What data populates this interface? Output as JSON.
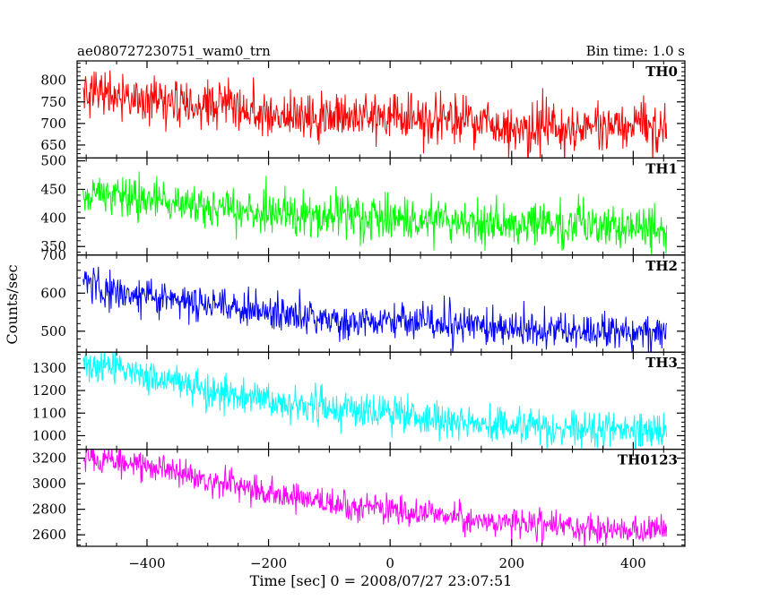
{
  "chart_data": {
    "type": "line",
    "title": "ae080727230751_wam0_trn",
    "bin_time_label": "Bin time: 1.0 s",
    "xlabel": "Time [sec] 0 = 2008/07/27 23:07:51",
    "ylabel": "Counts/sec",
    "xlim": [
      -515,
      485
    ],
    "x_start": -505,
    "x_end": 455,
    "x_step": 1,
    "x_ticks": [
      -400,
      -200,
      0,
      200,
      400
    ],
    "x_tick_labels": [
      "−400",
      "−200",
      "0",
      "200",
      "400"
    ],
    "grid": false,
    "panels": [
      {
        "name": "TH0",
        "color": "#ff0000",
        "ylim": [
          620,
          845
        ],
        "y_ticks": [
          650,
          700,
          750,
          800
        ],
        "y_tick_labels": [
          "650",
          "700",
          "750",
          "800"
        ],
        "trend": [
          [
            -505,
            770
          ],
          [
            -400,
            760
          ],
          [
            -300,
            740
          ],
          [
            -200,
            725
          ],
          [
            -100,
            710
          ],
          [
            0,
            715
          ],
          [
            100,
            705
          ],
          [
            200,
            690
          ],
          [
            300,
            690
          ],
          [
            400,
            695
          ],
          [
            455,
            690
          ]
        ],
        "noise_sigma": 28
      },
      {
        "name": "TH1",
        "color": "#00ff00",
        "ylim": [
          335,
          505
        ],
        "y_ticks": [
          350,
          400,
          450,
          500
        ],
        "y_tick_labels": [
          "350",
          "400",
          "450",
          "500"
        ],
        "trend": [
          [
            -505,
            445
          ],
          [
            -400,
            428
          ],
          [
            -300,
            415
          ],
          [
            -200,
            408
          ],
          [
            -100,
            400
          ],
          [
            0,
            398
          ],
          [
            100,
            395
          ],
          [
            200,
            388
          ],
          [
            300,
            385
          ],
          [
            400,
            383
          ],
          [
            455,
            378
          ]
        ],
        "noise_sigma": 19
      },
      {
        "name": "TH2",
        "color": "#0000ff",
        "ylim": [
          445,
          700
        ],
        "y_ticks": [
          500,
          600,
          700
        ],
        "y_tick_labels": [
          "500",
          "600",
          "700"
        ],
        "trend": [
          [
            -505,
            640
          ],
          [
            -480,
            605
          ],
          [
            -400,
            592
          ],
          [
            -300,
            572
          ],
          [
            -200,
            548
          ],
          [
            -100,
            528
          ],
          [
            0,
            530
          ],
          [
            100,
            520
          ],
          [
            200,
            510
          ],
          [
            300,
            500
          ],
          [
            400,
            495
          ],
          [
            455,
            495
          ]
        ],
        "noise_sigma": 23
      },
      {
        "name": "TH3",
        "color": "#00ffff",
        "ylim": [
          940,
          1370
        ],
        "y_ticks": [
          1000,
          1100,
          1200,
          1300
        ],
        "y_tick_labels": [
          "1000",
          "1100",
          "1200",
          "1300"
        ],
        "trend": [
          [
            -505,
            1315
          ],
          [
            -400,
            1260
          ],
          [
            -300,
            1210
          ],
          [
            -200,
            1160
          ],
          [
            -100,
            1120
          ],
          [
            0,
            1095
          ],
          [
            100,
            1065
          ],
          [
            200,
            1048
          ],
          [
            300,
            1035
          ],
          [
            400,
            1025
          ],
          [
            455,
            1020
          ]
        ],
        "noise_sigma": 38
      },
      {
        "name": "TH0123",
        "color": "#ff00ff",
        "ylim": [
          2510,
          3270
        ],
        "y_ticks": [
          2600,
          2800,
          3000,
          3200
        ],
        "y_tick_labels": [
          "2600",
          "2800",
          "3000",
          "3200"
        ],
        "trend": [
          [
            -505,
            3210
          ],
          [
            -400,
            3140
          ],
          [
            -300,
            3030
          ],
          [
            -200,
            2930
          ],
          [
            -100,
            2840
          ],
          [
            0,
            2800
          ],
          [
            100,
            2730
          ],
          [
            200,
            2690
          ],
          [
            300,
            2660
          ],
          [
            400,
            2640
          ],
          [
            455,
            2630
          ]
        ],
        "noise_sigma": 55
      }
    ]
  }
}
